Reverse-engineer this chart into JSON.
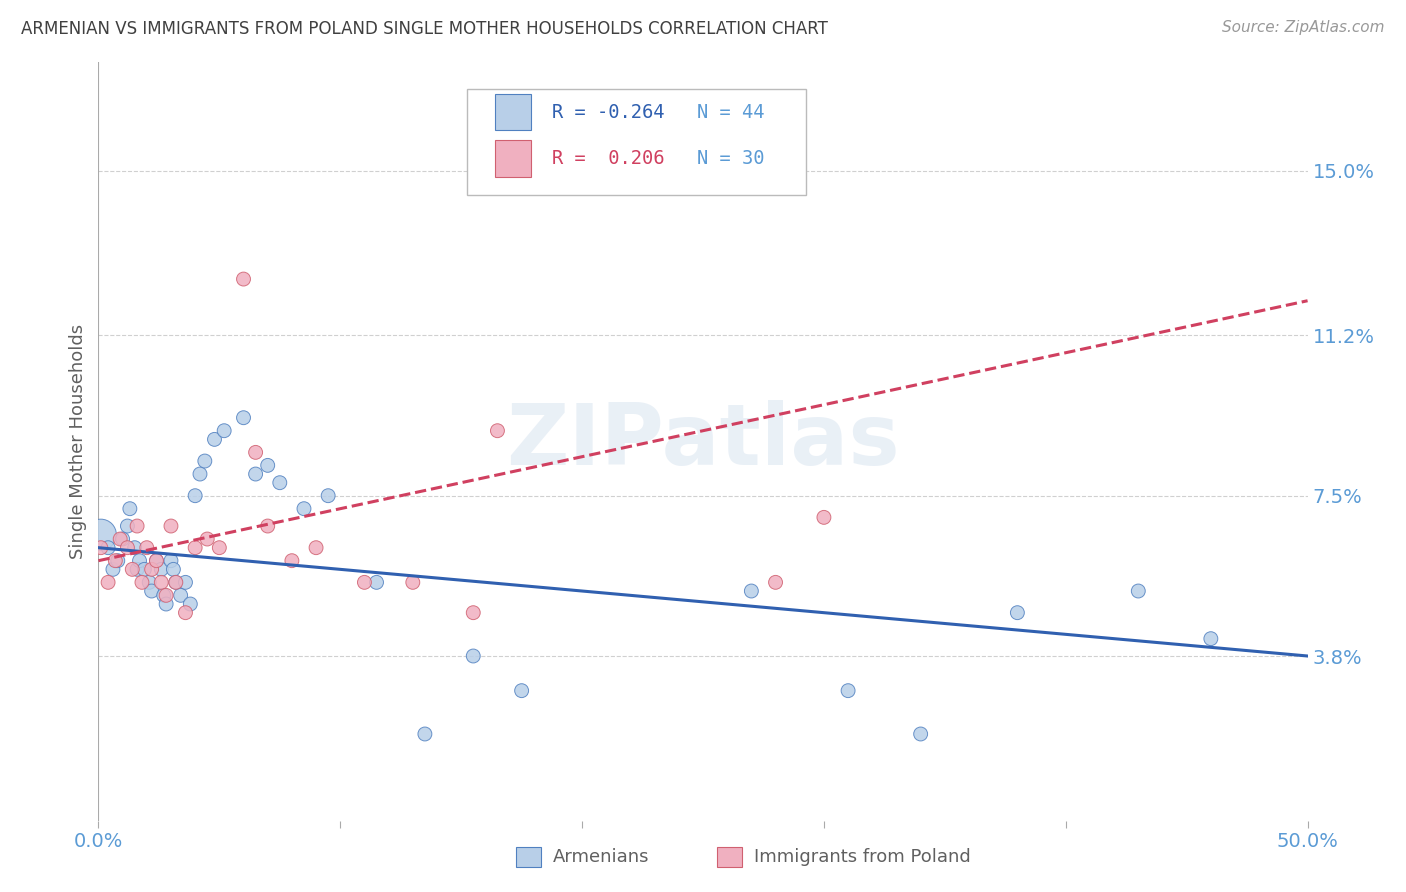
{
  "title": "ARMENIAN VS IMMIGRANTS FROM POLAND SINGLE MOTHER HOUSEHOLDS CORRELATION CHART",
  "source": "Source: ZipAtlas.com",
  "ylabel": "Single Mother Households",
  "xlim": [
    0.0,
    0.5
  ],
  "ylim": [
    0.0,
    0.175
  ],
  "yticks": [
    0.038,
    0.075,
    0.112,
    0.15
  ],
  "ytick_labels": [
    "3.8%",
    "7.5%",
    "11.2%",
    "15.0%"
  ],
  "xticks": [
    0.0,
    0.1,
    0.2,
    0.3,
    0.4,
    0.5
  ],
  "xtick_labels": [
    "0.0%",
    "",
    "",
    "",
    "",
    "50.0%"
  ],
  "legend_r1": "R = -0.264",
  "legend_n1": "N = 44",
  "legend_r2": "R =  0.206",
  "legend_n2": "N = 30",
  "color_armenian_fill": "#b8cfe8",
  "color_armenian_edge": "#5080c0",
  "color_poland_fill": "#f0b0c0",
  "color_poland_edge": "#d06070",
  "color_line_armenian": "#3060b0",
  "color_line_poland": "#d04060",
  "watermark": "ZIPatlas",
  "background_color": "#ffffff",
  "grid_color": "#d0d0d0",
  "title_color": "#404040",
  "axis_label_color": "#606060",
  "tick_label_color": "#5b9bd5",
  "armenians_x": [
    0.001,
    0.004,
    0.006,
    0.008,
    0.01,
    0.012,
    0.013,
    0.015,
    0.016,
    0.017,
    0.019,
    0.021,
    0.022,
    0.024,
    0.026,
    0.027,
    0.028,
    0.03,
    0.031,
    0.032,
    0.034,
    0.036,
    0.038,
    0.04,
    0.042,
    0.044,
    0.048,
    0.052,
    0.06,
    0.065,
    0.07,
    0.075,
    0.085,
    0.095,
    0.115,
    0.135,
    0.155,
    0.175,
    0.27,
    0.31,
    0.34,
    0.38,
    0.43,
    0.46
  ],
  "armenians_y": [
    0.066,
    0.063,
    0.058,
    0.06,
    0.065,
    0.068,
    0.072,
    0.063,
    0.058,
    0.06,
    0.058,
    0.055,
    0.053,
    0.06,
    0.058,
    0.052,
    0.05,
    0.06,
    0.058,
    0.055,
    0.052,
    0.055,
    0.05,
    0.075,
    0.08,
    0.083,
    0.088,
    0.09,
    0.093,
    0.08,
    0.082,
    0.078,
    0.072,
    0.075,
    0.055,
    0.02,
    0.038,
    0.03,
    0.053,
    0.03,
    0.02,
    0.048,
    0.053,
    0.042
  ],
  "armenians_size": [
    500,
    100,
    100,
    100,
    100,
    100,
    100,
    100,
    100,
    100,
    100,
    100,
    100,
    100,
    100,
    100,
    100,
    100,
    100,
    100,
    100,
    100,
    100,
    100,
    100,
    100,
    100,
    100,
    100,
    100,
    100,
    100,
    100,
    100,
    100,
    100,
    100,
    100,
    100,
    100,
    100,
    100,
    100,
    100
  ],
  "poland_x": [
    0.001,
    0.004,
    0.007,
    0.009,
    0.012,
    0.014,
    0.016,
    0.018,
    0.02,
    0.022,
    0.024,
    0.026,
    0.028,
    0.03,
    0.032,
    0.036,
    0.04,
    0.045,
    0.05,
    0.06,
    0.065,
    0.07,
    0.08,
    0.09,
    0.11,
    0.13,
    0.155,
    0.165,
    0.28,
    0.3
  ],
  "poland_y": [
    0.063,
    0.055,
    0.06,
    0.065,
    0.063,
    0.058,
    0.068,
    0.055,
    0.063,
    0.058,
    0.06,
    0.055,
    0.052,
    0.068,
    0.055,
    0.048,
    0.063,
    0.065,
    0.063,
    0.125,
    0.085,
    0.068,
    0.06,
    0.063,
    0.055,
    0.055,
    0.048,
    0.09,
    0.055,
    0.07
  ],
  "poland_size": [
    100,
    100,
    100,
    100,
    100,
    100,
    100,
    100,
    100,
    100,
    100,
    100,
    100,
    100,
    100,
    100,
    100,
    100,
    100,
    100,
    100,
    100,
    100,
    100,
    100,
    100,
    100,
    100,
    100,
    100
  ],
  "r_armenian": -0.264,
  "r_poland": 0.206
}
